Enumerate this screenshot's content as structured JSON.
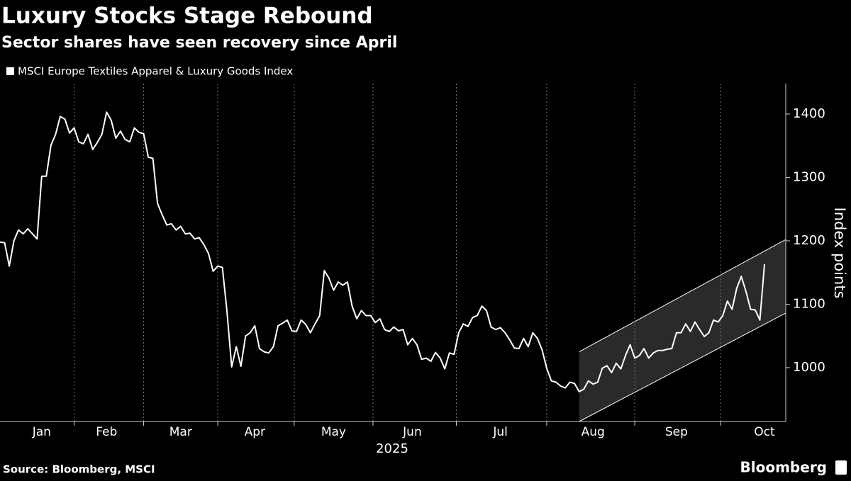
{
  "chart_data": {
    "type": "line",
    "title": "Luxury Stocks Stage Rebound",
    "subtitle": "Sector shares have seen recovery since April",
    "ylabel": "Index points",
    "xlabel": "2025",
    "source": "Source: Bloomberg, MSCI",
    "brand": "Bloomberg",
    "ylim": [
      915,
      1448
    ],
    "yticks": [
      1000,
      1100,
      1200,
      1300,
      1400
    ],
    "categories": [
      null,
      null,
      null,
      null,
      null,
      null,
      null,
      null,
      null,
      "Jan",
      null,
      null,
      null,
      null,
      null,
      null,
      null,
      null,
      null,
      null,
      null,
      null,
      null,
      "Feb",
      null,
      null,
      null,
      null,
      null,
      null,
      null,
      null,
      null,
      null,
      null,
      null,
      null,
      null,
      null,
      "Mar",
      null,
      null,
      null,
      null,
      null,
      null,
      null,
      null,
      null,
      null,
      null,
      null,
      null,
      null,
      null,
      "Apr",
      null,
      null,
      null,
      null,
      null,
      null,
      null,
      null,
      null,
      null,
      null,
      null,
      null,
      null,
      null,
      null,
      "May",
      null,
      null,
      null,
      null,
      null,
      null,
      null,
      null,
      null,
      null,
      null,
      null,
      null,
      null,
      null,
      null,
      "Jun",
      null,
      null,
      null,
      null,
      null,
      null,
      null,
      null,
      null,
      null,
      null,
      null,
      null,
      null,
      null,
      null,
      null,
      null,
      "Jul",
      null,
      null,
      null,
      null,
      null,
      null,
      null,
      null,
      null,
      null,
      null,
      null,
      null,
      null,
      null,
      null,
      null,
      null,
      null,
      "Aug",
      null,
      null,
      null,
      null,
      null,
      null,
      null,
      null,
      null,
      null,
      null,
      null,
      null,
      null,
      null,
      null,
      null,
      "Sep",
      null,
      null,
      null,
      null,
      null,
      null,
      null,
      null,
      null,
      null,
      null,
      null,
      null,
      null,
      null,
      null,
      null,
      null,
      "Oct"
    ],
    "series": [
      {
        "name": "MSCI Europe Textiles Apparel & Luxury Goods Index",
        "color": "#ffffff",
        "values": [
          1198,
          1197,
          1160,
          1200,
          1217,
          1211,
          1219,
          1211,
          1203,
          1302,
          1302,
          1351,
          1368,
          1396,
          1392,
          1370,
          1378,
          1356,
          1353,
          1368,
          1344,
          1355,
          1368,
          1403,
          1390,
          1362,
          1373,
          1360,
          1356,
          1378,
          1371,
          1369,
          1332,
          1330,
          1259,
          1241,
          1225,
          1227,
          1217,
          1223,
          1211,
          1212,
          1203,
          1205,
          1194,
          1180,
          1152,
          1160,
          1158,
          1088,
          1001,
          1033,
          1002,
          1050,
          1055,
          1066,
          1030,
          1025,
          1023,
          1033,
          1066,
          1070,
          1075,
          1058,
          1057,
          1075,
          1068,
          1055,
          1069,
          1082,
          1153,
          1141,
          1122,
          1135,
          1130,
          1135,
          1097,
          1077,
          1090,
          1082,
          1082,
          1071,
          1077,
          1060,
          1057,
          1064,
          1058,
          1060,
          1036,
          1046,
          1036,
          1013,
          1015,
          1010,
          1024,
          1015,
          998,
          1023,
          1021,
          1055,
          1069,
          1065,
          1079,
          1082,
          1097,
          1090,
          1064,
          1060,
          1063,
          1055,
          1044,
          1031,
          1030,
          1046,
          1033,
          1055,
          1046,
          1028,
          999,
          979,
          977,
          971,
          968,
          977,
          975,
          962,
          966,
          979,
          974,
          977,
          999,
          1003,
          992,
          1007,
          998,
          1019,
          1036,
          1015,
          1019,
          1030,
          1015,
          1023,
          1027,
          1027,
          1029,
          1030,
          1055,
          1055,
          1069,
          1057,
          1072,
          1060,
          1049,
          1055,
          1075,
          1072,
          1082,
          1105,
          1092,
          1125,
          1144,
          1120,
          1092,
          1091,
          1075,
          1163
        ]
      }
    ],
    "channel": {
      "x_start": 125,
      "upper": [
        1025,
        1202
      ],
      "lower": [
        915,
        1086
      ],
      "color": "#2a2a2a"
    }
  }
}
